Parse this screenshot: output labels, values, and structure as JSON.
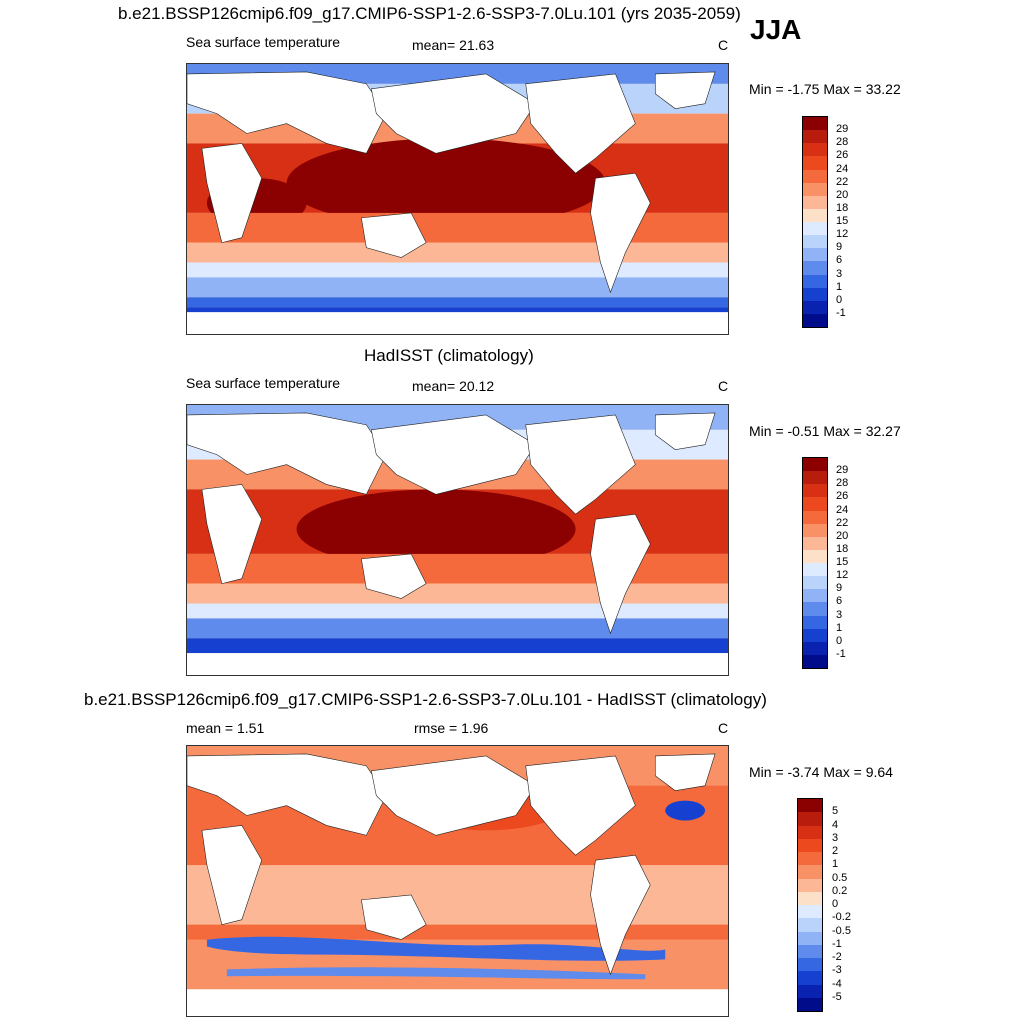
{
  "season": "JJA",
  "panels": [
    {
      "title": "b.e21.BSSP126cmip6.f09_g17.CMIP6-SSP1-2.6-SSP3-7.0Lu.101 (yrs 2035-2059)",
      "left_label": "Sea surface temperature",
      "center_label": "mean=  21.63",
      "unit": "C",
      "minmax": "Min =  -1.75 Max =  33.22",
      "colorbar": {
        "labels": [
          "29",
          "28",
          "26",
          "24",
          "22",
          "20",
          "18",
          "15",
          "12",
          "9",
          "6",
          "3",
          "1",
          "0",
          "-1"
        ],
        "colors": [
          "#8b0000",
          "#b71c0c",
          "#d73014",
          "#ec4a1e",
          "#f46a3c",
          "#f99167",
          "#fcb896",
          "#fde0c8",
          "#ddeaff",
          "#b9d3fb",
          "#8fb3f4",
          "#5f8bec",
          "#3667e3",
          "#1540d0",
          "#0a22b0",
          "#000c8a"
        ]
      }
    },
    {
      "title": "HadISST (climatology)",
      "left_label": "Sea surface temperature",
      "center_label": "mean=  20.12",
      "unit": "C",
      "minmax": "Min =  -0.51 Max =  32.27",
      "colorbar": {
        "labels": [
          "29",
          "28",
          "26",
          "24",
          "22",
          "20",
          "18",
          "15",
          "12",
          "9",
          "6",
          "3",
          "1",
          "0",
          "-1"
        ],
        "colors": [
          "#8b0000",
          "#b71c0c",
          "#d73014",
          "#ec4a1e",
          "#f46a3c",
          "#f99167",
          "#fcb896",
          "#fde0c8",
          "#ddeaff",
          "#b9d3fb",
          "#8fb3f4",
          "#5f8bec",
          "#3667e3",
          "#1540d0",
          "#0a22b0",
          "#000c8a"
        ]
      }
    },
    {
      "title": "b.e21.BSSP126cmip6.f09_g17.CMIP6-SSP1-2.6-SSP3-7.0Lu.101 - HadISST (climatology)",
      "left_label": "mean =   1.51",
      "center_label": "rmse =   1.96",
      "unit": "C",
      "minmax": "Min =  -3.74 Max =   9.64",
      "colorbar": {
        "labels": [
          "5",
          "4",
          "3",
          "2",
          "1",
          "0.5",
          "0.2",
          "0",
          "-0.2",
          "-0.5",
          "-1",
          "-2",
          "-3",
          "-4",
          "-5"
        ],
        "colors": [
          "#8b0000",
          "#b71c0c",
          "#d73014",
          "#ec4a1e",
          "#f46a3c",
          "#f99167",
          "#fcb896",
          "#fde0c8",
          "#ddeaff",
          "#b9d3fb",
          "#8fb3f4",
          "#5f8bec",
          "#3667e3",
          "#1540d0",
          "#0a22b0",
          "#000c8a"
        ]
      }
    }
  ]
}
